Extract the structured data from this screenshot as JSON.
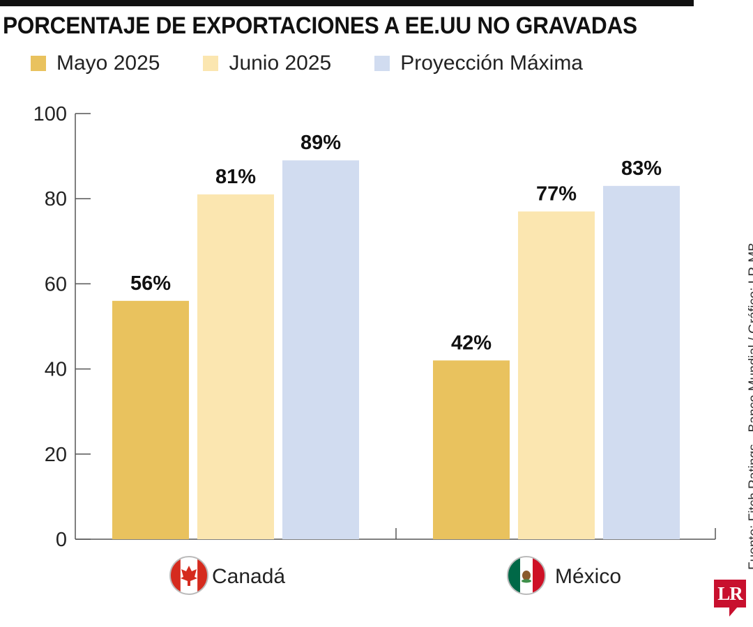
{
  "chart_data": {
    "type": "bar",
    "title": "PORCENTAJE DE EXPORTACIONES A EE.UU NO GRAVADAS",
    "categories": [
      "Canadá",
      "México"
    ],
    "series": [
      {
        "name": "Mayo 2025",
        "color": "#e9c25e",
        "values": [
          56,
          42
        ],
        "labels": [
          "56%",
          "42%"
        ]
      },
      {
        "name": "Junio 2025",
        "color": "#fbe6b0",
        "values": [
          81,
          77
        ],
        "labels": [
          "81%",
          "77%"
        ]
      },
      {
        "name": "Proyección Máxima",
        "color": "#d1dcf0",
        "values": [
          89,
          83
        ],
        "labels": [
          "89%",
          "83%"
        ]
      }
    ],
    "ylim": [
      0,
      100
    ],
    "yticks": [
      0,
      20,
      40,
      60,
      80,
      100
    ],
    "ytick_labels": [
      "0",
      "20",
      "40",
      "60",
      "80",
      "100"
    ],
    "grid": false,
    "legend": "top-left",
    "category_icons": [
      "canada-flag-icon",
      "mexico-flag-icon"
    ]
  },
  "source": "Fuente:  Fitch Ratings - Banco Mundial / Gráfico: LR-MB",
  "logo": {
    "text": "LR"
  }
}
